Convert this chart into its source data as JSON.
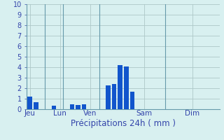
{
  "title": "",
  "xlabel": "Précipitations 24h ( mm )",
  "ylabel": "",
  "bar_color": "#1155cc",
  "background_color": "#d8f0f0",
  "grid_color": "#adc8c8",
  "axis_label_color": "#3344aa",
  "tick_label_color": "#3344aa",
  "ylim": [
    0,
    10
  ],
  "yticks": [
    0,
    1,
    2,
    3,
    4,
    5,
    6,
    7,
    8,
    9,
    10
  ],
  "bar_positions": [
    0,
    1,
    4,
    7,
    8,
    9,
    13,
    14,
    15,
    16,
    17
  ],
  "bar_heights": [
    1.2,
    0.7,
    0.35,
    0.5,
    0.4,
    0.5,
    2.3,
    2.4,
    4.2,
    4.1,
    1.7
  ],
  "day_ticks": [
    0,
    5,
    10,
    19,
    27
  ],
  "day_labels": [
    "Jeu",
    "Lun",
    "Ven",
    "Sam",
    "Dim"
  ],
  "n_total": 32,
  "bar_width": 0.75,
  "vline_positions": [
    2.5,
    5.5,
    11.5,
    22.5
  ],
  "xlabel_fontsize": 8.5,
  "tick_fontsize": 7,
  "day_label_fontsize": 7.5,
  "spine_color": "#6699aa"
}
